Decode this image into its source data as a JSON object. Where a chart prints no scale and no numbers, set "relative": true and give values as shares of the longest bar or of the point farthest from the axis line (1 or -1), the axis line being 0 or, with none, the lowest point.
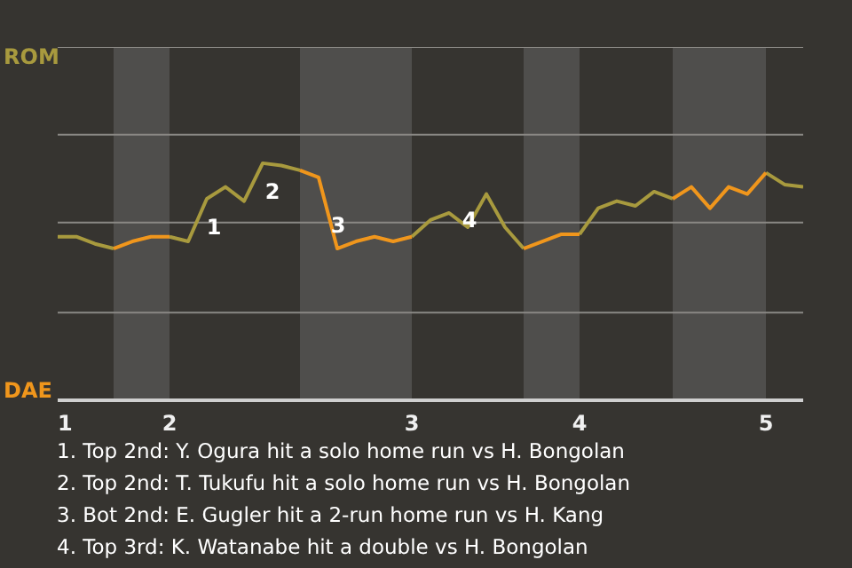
{
  "chart_data": {
    "type": "line",
    "relative": true,
    "categories": [
      "1",
      null,
      null,
      null,
      null,
      null,
      "2",
      null,
      null,
      null,
      null,
      null,
      null,
      null,
      null,
      null,
      null,
      null,
      null,
      "3",
      null,
      null,
      null,
      null,
      null,
      null,
      null,
      null,
      "4",
      null,
      null,
      null,
      null,
      null,
      null,
      null,
      null,
      null,
      "5",
      null,
      null
    ],
    "marker": "none",
    "line_style": "solid",
    "series": [
      {
        "color": "#a89a3e",
        "values": [
          0.69,
          0.69,
          0.66,
          0.64,
          null,
          null,
          0.69,
          0.67,
          0.85,
          0.9,
          0.84,
          1,
          0.99,
          0.97,
          null,
          null,
          null,
          null,
          null,
          0.69,
          0.76,
          0.79,
          0.73,
          0.87,
          0.73,
          0.64,
          null,
          null,
          0.7,
          0.81,
          0.84,
          0.82,
          0.88,
          0.85,
          null,
          null,
          null,
          null,
          0.96,
          0.91,
          0.9
        ]
      },
      {
        "color": "#f0961c",
        "values": [
          null,
          null,
          null,
          0.64,
          0.67,
          0.69,
          0.69,
          null,
          null,
          null,
          null,
          null,
          null,
          0.97,
          0.94,
          0.64,
          0.67,
          0.69,
          0.67,
          0.69,
          null,
          null,
          null,
          null,
          null,
          0.64,
          0.67,
          0.7,
          0.7,
          null,
          null,
          null,
          null,
          0.85,
          0.9,
          0.81,
          0.9,
          0.87,
          0.96,
          null,
          null
        ]
      }
    ],
    "ref_lines": [
      {
        "axis": "y",
        "value": 0.37,
        "label": null,
        "color": "#8a8884"
      },
      {
        "axis": "y",
        "value": 0.75,
        "label": null,
        "color": "#8a8884"
      },
      {
        "axis": "y",
        "value": 1.12,
        "label": null,
        "color": "#8a8884"
      },
      {
        "axis": "y",
        "value": 1.49,
        "label": null,
        "color": "#8a8884"
      }
    ],
    "annotations": [
      "ROM",
      "DAE",
      "1",
      "2",
      "3",
      "4",
      "1. Top 2nd: Y. Ogura hit a solo home run vs H. Bongolan",
      "2. Top 2nd: T. Tukufu hit a solo home run vs H. Bongolan",
      "3. Bot 2nd: E. Gugler hit a 2-run home run vs H. Kang",
      "4. Top 3rd: K. Watanabe hit a double vs H. Bongolan"
    ]
  }
}
